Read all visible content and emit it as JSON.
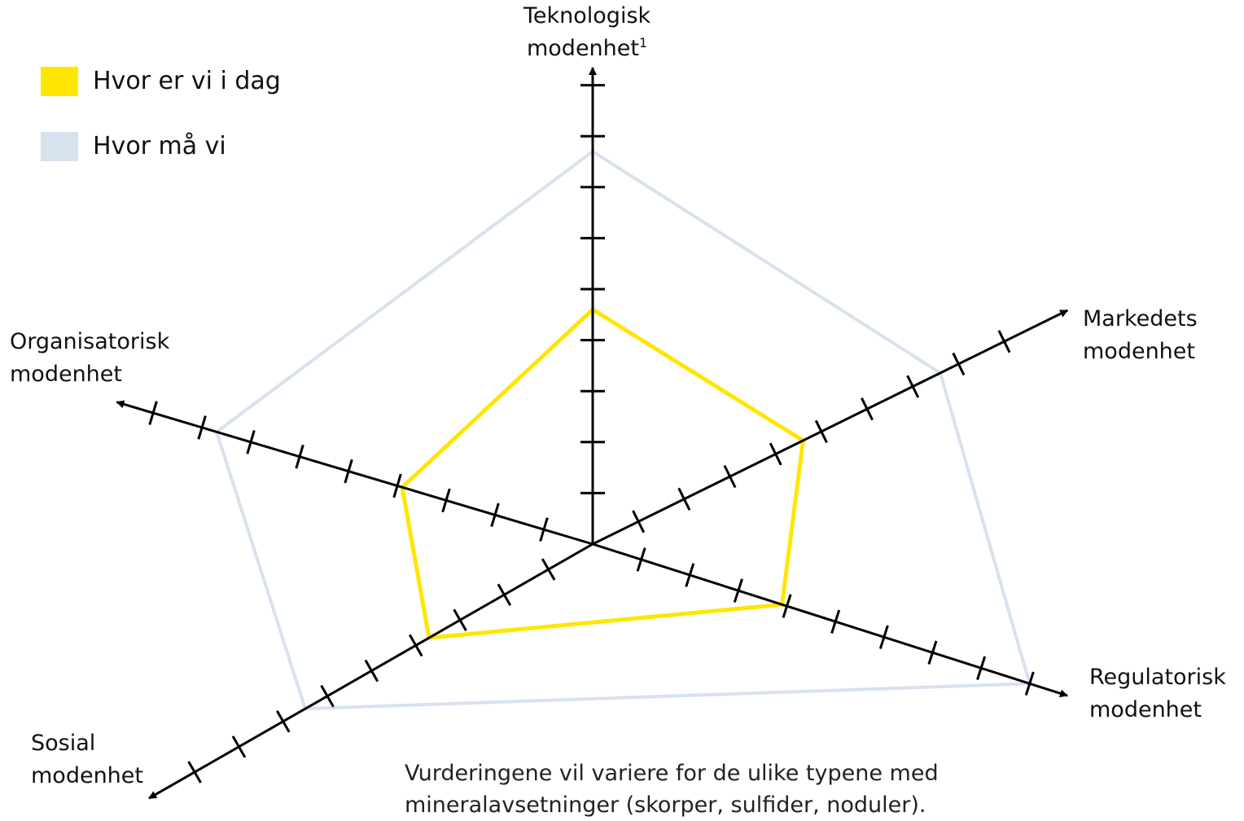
{
  "chart_data": {
    "type": "radar",
    "axes": [
      {
        "key": "tek",
        "label_lines": [
          "Teknologisk",
          "modenhet"
        ],
        "superscript": "1"
      },
      {
        "key": "mark",
        "label_lines": [
          "Markedets",
          "modenhet"
        ]
      },
      {
        "key": "reg",
        "label_lines": [
          "Regulatorisk",
          "modenhet"
        ]
      },
      {
        "key": "sos",
        "label_lines": [
          "Sosial",
          "modenhet"
        ]
      },
      {
        "key": "org",
        "label_lines": [
          "Organisatorisk",
          "modenhet"
        ]
      }
    ],
    "scale_max": 9,
    "series": [
      {
        "name": "Hvor er vi i dag",
        "color": "#FFE600",
        "values": [
          4.6,
          4.6,
          3.9,
          3.7,
          3.9
        ]
      },
      {
        "name": "Hvor må vi",
        "color": "#D8E1EE",
        "values": [
          7.7,
          7.6,
          9,
          6.5,
          7.7
        ]
      }
    ],
    "note_lines": [
      "Vurderingene vil variere for de ulike typene med",
      "mineralavsetninger (skorper, sulfider, noduler)."
    ]
  }
}
